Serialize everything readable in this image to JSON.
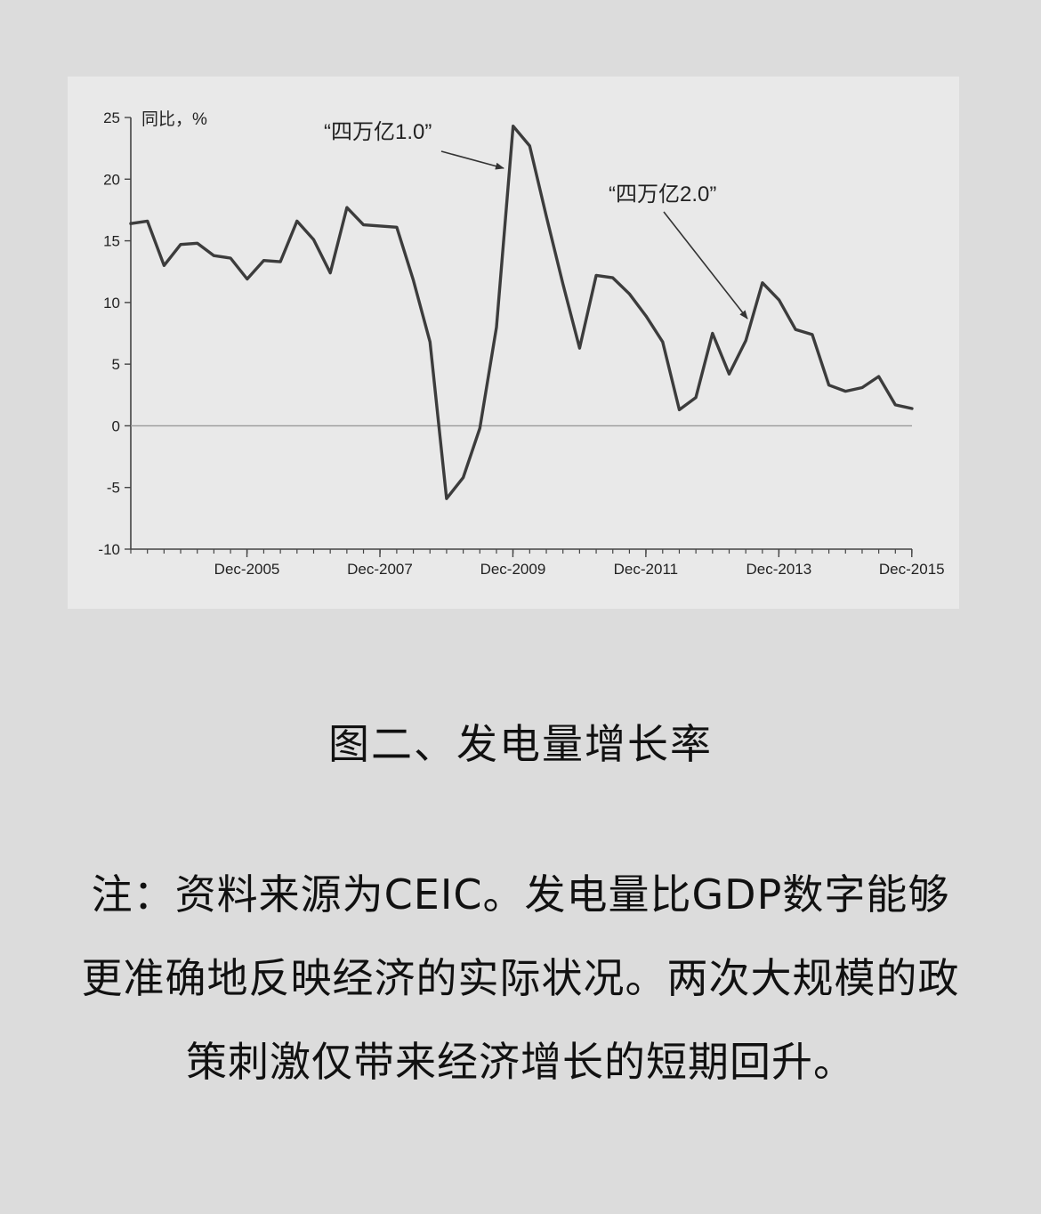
{
  "chart_data": {
    "type": "line",
    "ylabel": "同比，%",
    "ylim": [
      -10,
      25
    ],
    "yticks": [
      25,
      20,
      15,
      10,
      5,
      0,
      -5,
      -10
    ],
    "x_tick_labels": [
      "Dec-2005",
      "Dec-2007",
      "Dec-2009",
      "Dec-2011",
      "Dec-2013",
      "Dec-2015"
    ],
    "x_tick_values": [
      2005.917,
      2007.917,
      2009.917,
      2011.917,
      2013.917,
      2015.917
    ],
    "xlim": [
      2004.17,
      2015.92
    ],
    "grid": false,
    "zero_line": true,
    "series": [
      {
        "x": [
          2004.17,
          2004.42,
          2004.67,
          2004.92,
          2005.17,
          2005.42,
          2005.67,
          2005.92,
          2006.17,
          2006.42,
          2006.67,
          2006.92,
          2007.17,
          2007.42,
          2007.67,
          2007.92,
          2008.17,
          2008.42,
          2008.67,
          2008.92,
          2009.17,
          2009.42,
          2009.67,
          2009.92,
          2010.17,
          2010.42,
          2010.67,
          2010.92,
          2011.17,
          2011.42,
          2011.67,
          2011.92,
          2012.17,
          2012.42,
          2012.67,
          2012.92,
          2013.17,
          2013.42,
          2013.67,
          2013.92,
          2014.17,
          2014.42,
          2014.67,
          2014.92,
          2015.17,
          2015.42,
          2015.67,
          2015.92
        ],
        "values": [
          16.4,
          16.6,
          13.0,
          14.7,
          14.8,
          13.8,
          13.6,
          11.9,
          13.4,
          13.3,
          16.6,
          15.1,
          12.4,
          17.7,
          16.3,
          16.2,
          16.1,
          11.8,
          6.8,
          -5.9,
          -4.2,
          -0.2,
          8.0,
          24.3,
          22.7,
          17.0,
          11.5,
          6.3,
          12.2,
          12.0,
          10.7,
          8.9,
          6.8,
          1.3,
          2.3,
          7.5,
          4.2,
          6.9,
          11.6,
          10.2,
          7.8,
          7.4,
          3.3,
          2.8,
          3.1,
          4.0,
          1.7,
          1.4
        ]
      }
    ],
    "annotations": [
      {
        "text": "“四万亿1.0”",
        "x": 2009.83,
        "y": 21.0
      },
      {
        "text": "“四万亿2.0”",
        "x": 2013.0,
        "y": 8.6
      }
    ]
  },
  "caption": {
    "title": "图二、发电量增长率",
    "note": "注：资料来源为CEIC。发电量比GDP数字能够更准确地反映经济的实际状况。两次大规模的政策刺激仅带来经济增长的短期回升。"
  }
}
